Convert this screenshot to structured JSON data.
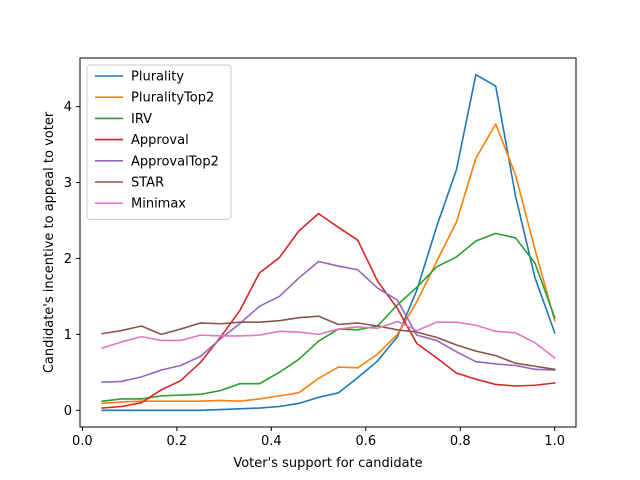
{
  "chart_data": {
    "type": "line",
    "title": "",
    "xlabel": "Voter's support for candidate",
    "ylabel": "Candidate's incentive to appeal to voter",
    "xlim": [
      -0.005,
      1.045
    ],
    "ylim": [
      -0.22,
      4.64
    ],
    "xticks": [
      0.0,
      0.2,
      0.4,
      0.6,
      0.8,
      1.0
    ],
    "xtick_labels": [
      "0.0",
      "0.2",
      "0.4",
      "0.6",
      "0.8",
      "1.0"
    ],
    "yticks": [
      0,
      1,
      2,
      3,
      4
    ],
    "ytick_labels": [
      "0",
      "1",
      "2",
      "3",
      "4"
    ],
    "grid": false,
    "legend_position": "upper-left",
    "x": [
      0.042,
      0.083,
      0.125,
      0.167,
      0.208,
      0.25,
      0.292,
      0.333,
      0.375,
      0.417,
      0.458,
      0.5,
      0.542,
      0.583,
      0.625,
      0.667,
      0.708,
      0.75,
      0.792,
      0.833,
      0.875,
      0.917,
      0.958,
      1.0
    ],
    "series": [
      {
        "name": "Plurality",
        "color": "#1f77b4",
        "values": [
          0.0,
          0.0,
          0.0,
          0.0,
          0.0,
          0.0,
          0.01,
          0.02,
          0.03,
          0.05,
          0.09,
          0.17,
          0.23,
          0.43,
          0.65,
          0.97,
          1.58,
          2.42,
          3.17,
          4.42,
          4.27,
          2.82,
          1.75,
          1.02
        ]
      },
      {
        "name": "PluralityTop2",
        "color": "#ff7f0e",
        "values": [
          0.09,
          0.11,
          0.12,
          0.12,
          0.12,
          0.12,
          0.13,
          0.12,
          0.15,
          0.19,
          0.23,
          0.42,
          0.57,
          0.56,
          0.74,
          1.0,
          1.43,
          1.96,
          2.48,
          3.32,
          3.77,
          3.1,
          2.12,
          1.18
        ]
      },
      {
        "name": "IRV",
        "color": "#2ca02c",
        "values": [
          0.12,
          0.15,
          0.15,
          0.19,
          0.2,
          0.21,
          0.26,
          0.35,
          0.35,
          0.5,
          0.67,
          0.91,
          1.07,
          1.06,
          1.11,
          1.39,
          1.62,
          1.89,
          2.02,
          2.23,
          2.33,
          2.27,
          1.94,
          1.22
        ]
      },
      {
        "name": "Approval",
        "color": "#d62728",
        "values": [
          0.03,
          0.05,
          0.1,
          0.27,
          0.39,
          0.63,
          0.96,
          1.31,
          1.81,
          2.01,
          2.36,
          2.59,
          2.41,
          2.24,
          1.7,
          1.34,
          0.88,
          0.69,
          0.49,
          0.41,
          0.34,
          0.32,
          0.33,
          0.36
        ]
      },
      {
        "name": "ApprovalTop2",
        "color": "#9467bd",
        "values": [
          0.37,
          0.38,
          0.44,
          0.53,
          0.59,
          0.71,
          0.94,
          1.14,
          1.37,
          1.5,
          1.74,
          1.96,
          1.9,
          1.85,
          1.61,
          1.45,
          0.99,
          0.92,
          0.77,
          0.64,
          0.61,
          0.59,
          0.54,
          0.53
        ]
      },
      {
        "name": "STAR",
        "color": "#8c564b",
        "values": [
          1.01,
          1.05,
          1.11,
          1.0,
          1.07,
          1.15,
          1.14,
          1.16,
          1.16,
          1.18,
          1.22,
          1.24,
          1.13,
          1.15,
          1.11,
          1.06,
          1.03,
          0.96,
          0.86,
          0.78,
          0.72,
          0.62,
          0.58,
          0.54
        ]
      },
      {
        "name": "Minimax",
        "color": "#e377c2",
        "values": [
          0.82,
          0.9,
          0.97,
          0.92,
          0.92,
          0.99,
          0.98,
          0.98,
          0.99,
          1.04,
          1.03,
          1.0,
          1.07,
          1.1,
          1.08,
          1.17,
          1.05,
          1.16,
          1.16,
          1.12,
          1.04,
          1.02,
          0.89,
          0.69
        ]
      }
    ]
  }
}
